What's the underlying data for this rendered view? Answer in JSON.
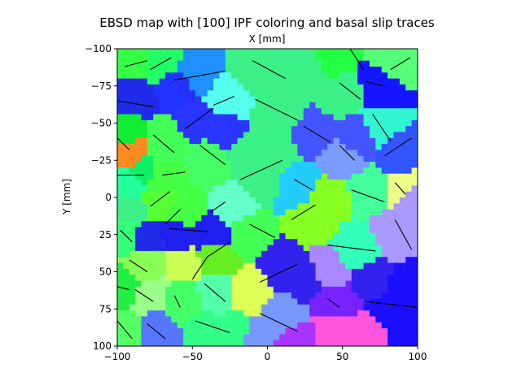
{
  "figure": {
    "title": "EBSD map with [100] IPF coloring and basal slip traces"
  },
  "chart_data": {
    "type": "heatmap",
    "title": "EBSD map with [100] IPF coloring and basal slip traces",
    "xlabel": "X [mm]",
    "ylabel": "Y [mm]",
    "xlim": [
      -100,
      100
    ],
    "ylim": [
      100,
      -100
    ],
    "y_inverted": true,
    "x_axis_position": "top",
    "xticks": [
      -100,
      -50,
      0,
      50,
      100
    ],
    "yticks": [
      -100,
      -75,
      -50,
      -25,
      0,
      25,
      50,
      75,
      100
    ],
    "xtick_labels": [
      "−100",
      "−50",
      "0",
      "50",
      "100"
    ],
    "ytick_labels": [
      "−100",
      "−75",
      "−50",
      "−25",
      "0",
      "25",
      "50",
      "75",
      "100"
    ],
    "grains": [
      {
        "x": -88,
        "y": -90,
        "color": "#33ff44",
        "trace": [
          [
            -95,
            -88
          ],
          [
            -80,
            -92
          ]
        ]
      },
      {
        "x": -72,
        "y": -90,
        "color": "#22ff66",
        "trace": [
          [
            -78,
            -86
          ],
          [
            -64,
            -94
          ]
        ]
      },
      {
        "x": -48,
        "y": -82,
        "color": "#1e90ff",
        "trace": [
          [
            -62,
            -79
          ],
          [
            -28,
            -85
          ]
        ]
      },
      {
        "x": -5,
        "y": -85,
        "color": "#3cf088",
        "trace": [
          [
            -10,
            -92
          ],
          [
            12,
            -80
          ]
        ]
      },
      {
        "x": 42,
        "y": -92,
        "color": "#22ff44",
        "trace": [
          [
            55,
            -100
          ],
          [
            64,
            -86
          ]
        ]
      },
      {
        "x": 85,
        "y": -90,
        "color": "#55ff77",
        "trace": [
          [
            82,
            -86
          ],
          [
            95,
            -94
          ]
        ]
      },
      {
        "x": 75,
        "y": -75,
        "color": "#1515ff",
        "trace": [
          [
            65,
            -78
          ],
          [
            78,
            -75
          ]
        ]
      },
      {
        "x": -90,
        "y": -68,
        "color": "#1f2be8",
        "trace": [
          [
            -100,
            -65
          ],
          [
            -76,
            -61
          ]
        ]
      },
      {
        "x": -45,
        "y": -52,
        "color": "#2a35ff",
        "trace": [
          [
            -55,
            -46
          ],
          [
            -36,
            -60
          ]
        ]
      },
      {
        "x": -28,
        "y": -65,
        "color": "#55ffee",
        "trace": [
          [
            -36,
            -62
          ],
          [
            -22,
            -68
          ]
        ]
      },
      {
        "x": 8,
        "y": -55,
        "color": "#3cf088",
        "trace": [
          [
            -8,
            -66
          ],
          [
            20,
            -52
          ]
        ]
      },
      {
        "x": 50,
        "y": -70,
        "color": "#3cf088",
        "trace": [
          [
            48,
            -77
          ],
          [
            62,
            -66
          ]
        ]
      },
      {
        "x": 30,
        "y": -42,
        "color": "#4455ff",
        "trace": [
          [
            24,
            -48
          ],
          [
            42,
            -37
          ]
        ]
      },
      {
        "x": 75,
        "y": -48,
        "color": "#30f5d0",
        "trace": [
          [
            70,
            -56
          ],
          [
            82,
            -38
          ]
        ]
      },
      {
        "x": -97,
        "y": -45,
        "color": "#11ee33",
        "trace": [
          [
            -100,
            -40
          ],
          [
            -92,
            -32
          ]
        ]
      },
      {
        "x": -92,
        "y": -28,
        "color": "#ff8a20",
        "trace": []
      },
      {
        "x": -85,
        "y": -18,
        "color": "#11ee66",
        "trace": [
          [
            -100,
            -15
          ],
          [
            -82,
            -15
          ]
        ]
      },
      {
        "x": -68,
        "y": -35,
        "color": "#44ff55",
        "trace": [
          [
            -76,
            -42
          ],
          [
            -62,
            -30
          ]
        ]
      },
      {
        "x": -38,
        "y": -25,
        "color": "#44ff66",
        "trace": [
          [
            -45,
            -35
          ],
          [
            -28,
            -22
          ]
        ]
      },
      {
        "x": -70,
        "y": -12,
        "color": "#44ff44",
        "trace": [
          [
            -70,
            -15
          ],
          [
            -55,
            -17
          ]
        ]
      },
      {
        "x": -5,
        "y": -12,
        "color": "#3cf088",
        "trace": [
          [
            -18,
            -12
          ],
          [
            10,
            -25
          ]
        ]
      },
      {
        "x": 20,
        "y": -8,
        "color": "#22ccff",
        "trace": [
          [
            18,
            -12
          ],
          [
            30,
            -5
          ]
        ]
      },
      {
        "x": 50,
        "y": -25,
        "color": "#7a9cff",
        "trace": [
          [
            48,
            -35
          ],
          [
            58,
            -25
          ]
        ]
      },
      {
        "x": 88,
        "y": -30,
        "color": "#3355ff",
        "trace": [
          [
            78,
            -28
          ],
          [
            96,
            -40
          ]
        ]
      },
      {
        "x": 90,
        "y": -5,
        "color": "#eeff88",
        "trace": [
          [
            85,
            -10
          ],
          [
            92,
            -2
          ]
        ]
      },
      {
        "x": -72,
        "y": 2,
        "color": "#55ff33",
        "trace": [
          [
            -78,
            6
          ],
          [
            -65,
            -4
          ]
        ]
      },
      {
        "x": -55,
        "y": 10,
        "color": "#44ff44",
        "trace": [
          [
            -68,
            18
          ],
          [
            -58,
            8
          ]
        ]
      },
      {
        "x": -95,
        "y": 25,
        "color": "#33ff77",
        "trace": [
          [
            -98,
            22
          ],
          [
            -90,
            30
          ]
        ]
      },
      {
        "x": -38,
        "y": 25,
        "color": "#2020ee",
        "trace": [
          [
            -65,
            21
          ],
          [
            -40,
            23
          ]
        ]
      },
      {
        "x": -22,
        "y": 5,
        "color": "#66ffcc",
        "trace": [
          [
            -28,
            3
          ],
          [
            -38,
            10
          ]
        ]
      },
      {
        "x": -12,
        "y": 25,
        "color": "#44ff55",
        "trace": [
          [
            -12,
            18
          ],
          [
            5,
            27
          ]
        ]
      },
      {
        "x": 30,
        "y": 15,
        "color": "#88ff22",
        "trace": [
          [
            16,
            15
          ],
          [
            32,
            5
          ]
        ]
      },
      {
        "x": 68,
        "y": -5,
        "color": "#44ff99",
        "trace": [
          [
            56,
            -5
          ],
          [
            78,
            3
          ]
        ]
      },
      {
        "x": 85,
        "y": 25,
        "color": "#aa99ff",
        "trace": [
          [
            85,
            15
          ],
          [
            96,
            35
          ]
        ]
      },
      {
        "x": -82,
        "y": 45,
        "color": "#88ff55",
        "trace": [
          [
            -92,
            42
          ],
          [
            -80,
            50
          ]
        ]
      },
      {
        "x": -55,
        "y": 45,
        "color": "#ccff55",
        "trace": [
          [
            -50,
            55
          ],
          [
            -40,
            40
          ]
        ]
      },
      {
        "x": -35,
        "y": 40,
        "color": "#66ee22",
        "trace": [
          [
            -40,
            40
          ],
          [
            -25,
            30
          ]
        ]
      },
      {
        "x": 10,
        "y": 45,
        "color": "#3322ee",
        "trace": [
          [
            -5,
            57
          ],
          [
            20,
            45
          ]
        ]
      },
      {
        "x": 60,
        "y": 35,
        "color": "#33ffbb",
        "trace": [
          [
            40,
            32
          ],
          [
            72,
            36
          ]
        ]
      },
      {
        "x": -95,
        "y": 60,
        "color": "#22ee44",
        "trace": [
          [
            -100,
            60
          ],
          [
            -92,
            62
          ]
        ]
      },
      {
        "x": -80,
        "y": 65,
        "color": "#99ff88",
        "trace": [
          [
            -88,
            62
          ],
          [
            -76,
            70
          ]
        ]
      },
      {
        "x": -55,
        "y": 70,
        "color": "#44ff66",
        "trace": [
          [
            -62,
            66
          ],
          [
            -58,
            74
          ]
        ]
      },
      {
        "x": -35,
        "y": 65,
        "color": "#55ffaa",
        "trace": [
          [
            -42,
            58
          ],
          [
            -28,
            70
          ]
        ]
      },
      {
        "x": 10,
        "y": 80,
        "color": "#7799ff",
        "trace": [
          [
            -5,
            78
          ],
          [
            20,
            90
          ]
        ]
      },
      {
        "x": 45,
        "y": 70,
        "color": "#7722ff",
        "trace": [
          [
            40,
            68
          ],
          [
            48,
            74
          ]
        ]
      },
      {
        "x": 82,
        "y": 78,
        "color": "#1a10ff",
        "trace": [
          [
            65,
            70
          ],
          [
            100,
            74
          ]
        ]
      },
      {
        "x": -75,
        "y": 90,
        "color": "#5577ff",
        "trace": [
          [
            -80,
            85
          ],
          [
            -68,
            95
          ]
        ]
      },
      {
        "x": -40,
        "y": 90,
        "color": "#33ff88",
        "trace": [
          [
            -48,
            83
          ],
          [
            -25,
            91
          ]
        ]
      },
      {
        "x": -95,
        "y": 90,
        "color": "#55ff66",
        "trace": [
          [
            -100,
            83
          ],
          [
            -90,
            95
          ]
        ]
      },
      {
        "x": 45,
        "y": 92,
        "color": "#ff55dd",
        "trace": []
      },
      {
        "x": -12,
        "y": 65,
        "color": "#ddff55",
        "trace": []
      },
      {
        "x": -30,
        "y": -45,
        "color": "#2a35ff",
        "trace": []
      },
      {
        "x": -60,
        "y": -75,
        "color": "#2233ff",
        "trace": []
      },
      {
        "x": -92,
        "y": -10,
        "color": "#22ff99",
        "trace": []
      },
      {
        "x": -92,
        "y": 8,
        "color": "#3cf088",
        "trace": []
      },
      {
        "x": -80,
        "y": 28,
        "color": "#1f2be8",
        "trace": []
      },
      {
        "x": -60,
        "y": 25,
        "color": "#2020ee",
        "trace": []
      },
      {
        "x": 30,
        "y": -85,
        "color": "#3cf088",
        "trace": []
      },
      {
        "x": 60,
        "y": -40,
        "color": "#4455ff",
        "trace": []
      },
      {
        "x": 92,
        "y": 60,
        "color": "#1a10ff",
        "trace": []
      },
      {
        "x": 70,
        "y": 55,
        "color": "#3322ee",
        "trace": []
      },
      {
        "x": 40,
        "y": 50,
        "color": "#aa88ff",
        "trace": []
      },
      {
        "x": 25,
        "y": 55,
        "color": "#3322ee",
        "trace": []
      },
      {
        "x": 70,
        "y": 92,
        "color": "#ff55dd",
        "trace": []
      },
      {
        "x": 90,
        "y": 95,
        "color": "#1a10ff",
        "trace": []
      },
      {
        "x": 20,
        "y": 98,
        "color": "#aa33ff",
        "trace": []
      },
      {
        "x": -20,
        "y": 92,
        "color": "#33ff88",
        "trace": []
      },
      {
        "x": -10,
        "y": 95,
        "color": "#7799ff",
        "trace": []
      },
      {
        "x": 5,
        "y": -30,
        "color": "#3cf088",
        "trace": []
      },
      {
        "x": -15,
        "y": -30,
        "color": "#3cf088",
        "trace": []
      },
      {
        "x": 40,
        "y": 0,
        "color": "#88ff22",
        "trace": []
      },
      {
        "x": 95,
        "y": 0,
        "color": "#aa99ff",
        "trace": []
      }
    ]
  }
}
